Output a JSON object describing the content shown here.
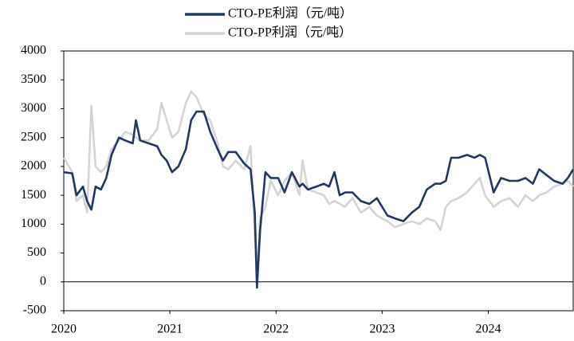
{
  "chart_data": {
    "type": "line",
    "x": [
      2020.0,
      2020.08,
      2020.12,
      2020.18,
      2020.22,
      2020.26,
      2020.3,
      2020.35,
      2020.4,
      2020.45,
      2020.52,
      2020.58,
      2020.65,
      2020.68,
      2020.72,
      2020.8,
      2020.88,
      2020.92,
      2020.97,
      2021.02,
      2021.08,
      2021.15,
      2021.2,
      2021.25,
      2021.32,
      2021.38,
      2021.45,
      2021.5,
      2021.55,
      2021.62,
      2021.7,
      2021.76,
      2021.8,
      2021.82,
      2021.85,
      2021.9,
      2021.95,
      2022.02,
      2022.08,
      2022.15,
      2022.22,
      2022.25,
      2022.3,
      2022.38,
      2022.45,
      2022.5,
      2022.55,
      2022.6,
      2022.65,
      2022.72,
      2022.8,
      2022.88,
      2022.95,
      2023.05,
      2023.12,
      2023.2,
      2023.28,
      2023.35,
      2023.42,
      2023.5,
      2023.55,
      2023.6,
      2023.65,
      2023.72,
      2023.8,
      2023.87,
      2023.92,
      2023.97,
      2024.05,
      2024.12,
      2024.2,
      2024.28,
      2024.35,
      2024.42,
      2024.48,
      2024.55,
      2024.62,
      2024.7,
      2024.75,
      2024.8
    ],
    "series": [
      {
        "name": "CTO-PE利润（元/吨）",
        "color": "#1f3864",
        "values": [
          1900,
          1880,
          1500,
          1650,
          1400,
          1250,
          1650,
          1600,
          1800,
          2200,
          2500,
          2450,
          2400,
          2800,
          2450,
          2400,
          2350,
          2200,
          2100,
          1900,
          2000,
          2300,
          2800,
          2950,
          2950,
          2600,
          2300,
          2100,
          2250,
          2250,
          2050,
          1950,
          1200,
          -100,
          900,
          1900,
          1800,
          1800,
          1550,
          1900,
          1650,
          1700,
          1600,
          1650,
          1700,
          1650,
          1900,
          1500,
          1550,
          1550,
          1400,
          1350,
          1450,
          1150,
          1100,
          1050,
          1200,
          1300,
          1600,
          1700,
          1700,
          1750,
          2150,
          2150,
          2200,
          2150,
          2200,
          2150,
          1550,
          1800,
          1750,
          1750,
          1800,
          1700,
          1950,
          1850,
          1750,
          1700,
          1800,
          1950
        ]
      },
      {
        "name": "CTO-PP利润（元/吨）",
        "color": "#d3d3d3",
        "values": [
          2150,
          1900,
          1400,
          1500,
          1200,
          3050,
          2000,
          1900,
          2000,
          2300,
          2450,
          2600,
          2550,
          2500,
          2450,
          2450,
          2650,
          3100,
          2800,
          2500,
          2600,
          3100,
          3300,
          3200,
          2900,
          2800,
          2400,
          2000,
          1950,
          2100,
          1950,
          2350,
          800,
          200,
          1100,
          1300,
          1750,
          1500,
          1750,
          1900,
          1500,
          2100,
          1600,
          1550,
          1500,
          1350,
          1400,
          1350,
          1300,
          1450,
          1200,
          1300,
          1150,
          1050,
          950,
          1000,
          1050,
          1000,
          1100,
          1050,
          900,
          1300,
          1400,
          1450,
          1550,
          1700,
          1800,
          1500,
          1300,
          1400,
          1450,
          1300,
          1500,
          1400,
          1500,
          1550,
          1650,
          1700,
          1750,
          1650
        ]
      }
    ],
    "xlim": [
      2020,
      2024.8
    ],
    "xticks": [
      2020,
      2021,
      2022,
      2023,
      2024
    ],
    "ylim": [
      -500,
      4000
    ],
    "yticks": [
      -500,
      0,
      500,
      1000,
      1500,
      2000,
      2500,
      3000,
      3500,
      4000
    ],
    "grid": false,
    "legend": "top"
  }
}
